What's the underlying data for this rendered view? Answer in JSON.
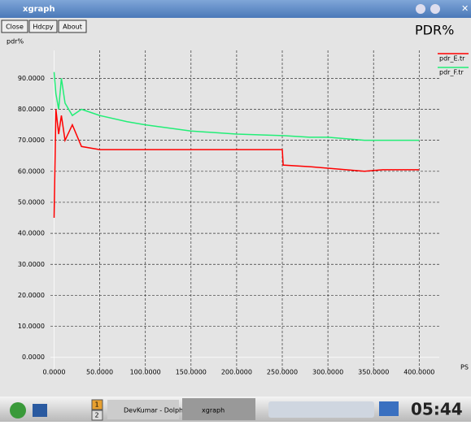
{
  "window": {
    "title": "xgraph",
    "buttons": [
      "Close",
      "Hdcpy",
      "About"
    ]
  },
  "taskbar": {
    "desktops": [
      "1",
      "2"
    ],
    "tasks": [
      "DevKumar - Dolphi",
      "xgraph"
    ],
    "clock": "05:44"
  },
  "chart_data": {
    "type": "line",
    "title": "PDR%",
    "y_label": "pdr%",
    "x_label": "PS",
    "x": [
      0,
      2,
      5,
      8,
      12,
      20,
      30,
      50,
      80,
      100,
      150,
      200,
      250,
      251,
      280,
      300,
      320,
      340,
      360,
      380,
      400
    ],
    "series": [
      {
        "name": "pdr_E.tr",
        "color": "#ff0000",
        "values": [
          45,
          80,
          72,
          78,
          70,
          75,
          68,
          67,
          67,
          67,
          67,
          67,
          67,
          62,
          61.5,
          61,
          60.5,
          60,
          60.5,
          60.5,
          60.5
        ]
      },
      {
        "name": "pdr_F.tr",
        "color": "#22ee77",
        "values": [
          92,
          85,
          80,
          90,
          82,
          78,
          80,
          78,
          76,
          75,
          73,
          72,
          71.5,
          71.5,
          71,
          71,
          70.5,
          70,
          70,
          70,
          70
        ]
      }
    ],
    "xlim": [
      -4,
      422
    ],
    "ylim": [
      -4,
      99
    ],
    "xticks": [
      {
        "value": 0,
        "label": "0.0000"
      },
      {
        "value": 50,
        "label": "50.0000"
      },
      {
        "value": 100,
        "label": "100.0000"
      },
      {
        "value": 150,
        "label": "150.0000"
      },
      {
        "value": 200,
        "label": "200.0000"
      },
      {
        "value": 250,
        "label": "250.0000"
      },
      {
        "value": 300,
        "label": "300.0000"
      },
      {
        "value": 350,
        "label": "350.0000"
      },
      {
        "value": 400,
        "label": "400.0000"
      }
    ],
    "yticks": [
      {
        "value": 0,
        "label": "0.0000"
      },
      {
        "value": 10,
        "label": "10.0000"
      },
      {
        "value": 20,
        "label": "20.0000"
      },
      {
        "value": 30,
        "label": "30.0000"
      },
      {
        "value": 40,
        "label": "40.0000"
      },
      {
        "value": 50,
        "label": "50.0000"
      },
      {
        "value": 60,
        "label": "60.0000"
      },
      {
        "value": 70,
        "label": "70.0000"
      },
      {
        "value": 80,
        "label": "80.0000"
      },
      {
        "value": 90,
        "label": "90.0000"
      }
    ],
    "grid": true,
    "legend": "top-right"
  }
}
